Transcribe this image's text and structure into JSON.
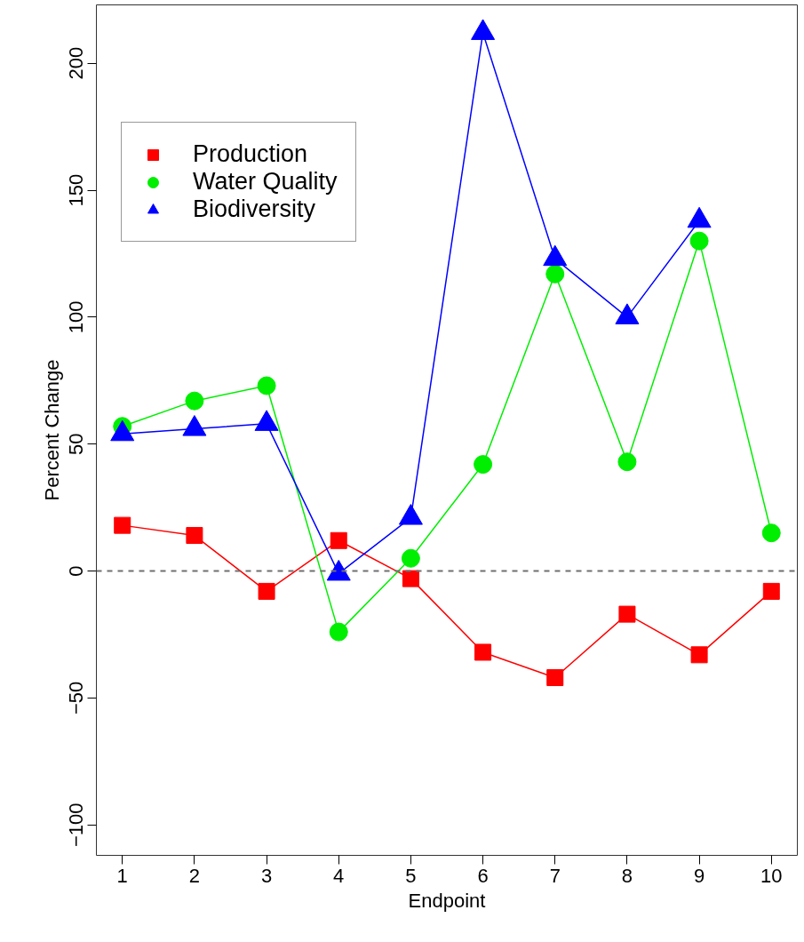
{
  "chart_data": {
    "type": "line",
    "xlabel": "Endpoint",
    "ylabel": "Percent Change",
    "x": [
      1,
      2,
      3,
      4,
      5,
      6,
      7,
      8,
      9,
      10
    ],
    "series": [
      {
        "name": "Production",
        "color": "#ff0000",
        "marker": "square",
        "values": [
          18,
          14,
          -8,
          12,
          -3,
          -32,
          -42,
          -17,
          -33,
          -8
        ]
      },
      {
        "name": "Water Quality",
        "color": "#00ee00",
        "marker": "circle",
        "values": [
          57,
          67,
          73,
          -24,
          5,
          42,
          117,
          43,
          130,
          15
        ]
      },
      {
        "name": "Biodiversity",
        "color": "#0000ff",
        "marker": "triangle",
        "values": [
          54,
          56,
          58,
          -1,
          21,
          212,
          123,
          100,
          138,
          null
        ]
      }
    ],
    "xlim": [
      0.64,
      10.36
    ],
    "ylim": [
      -112,
      223
    ],
    "xticks": [
      1,
      2,
      3,
      4,
      5,
      6,
      7,
      8,
      9,
      10
    ],
    "yticks": [
      -100,
      -50,
      0,
      50,
      100,
      150,
      200
    ],
    "ref_lines": [
      {
        "axis": "y",
        "value": 0,
        "color": "#707070",
        "line_style": "dashed"
      }
    ],
    "grid": false,
    "legend": "top left",
    "line_style": "solid"
  }
}
